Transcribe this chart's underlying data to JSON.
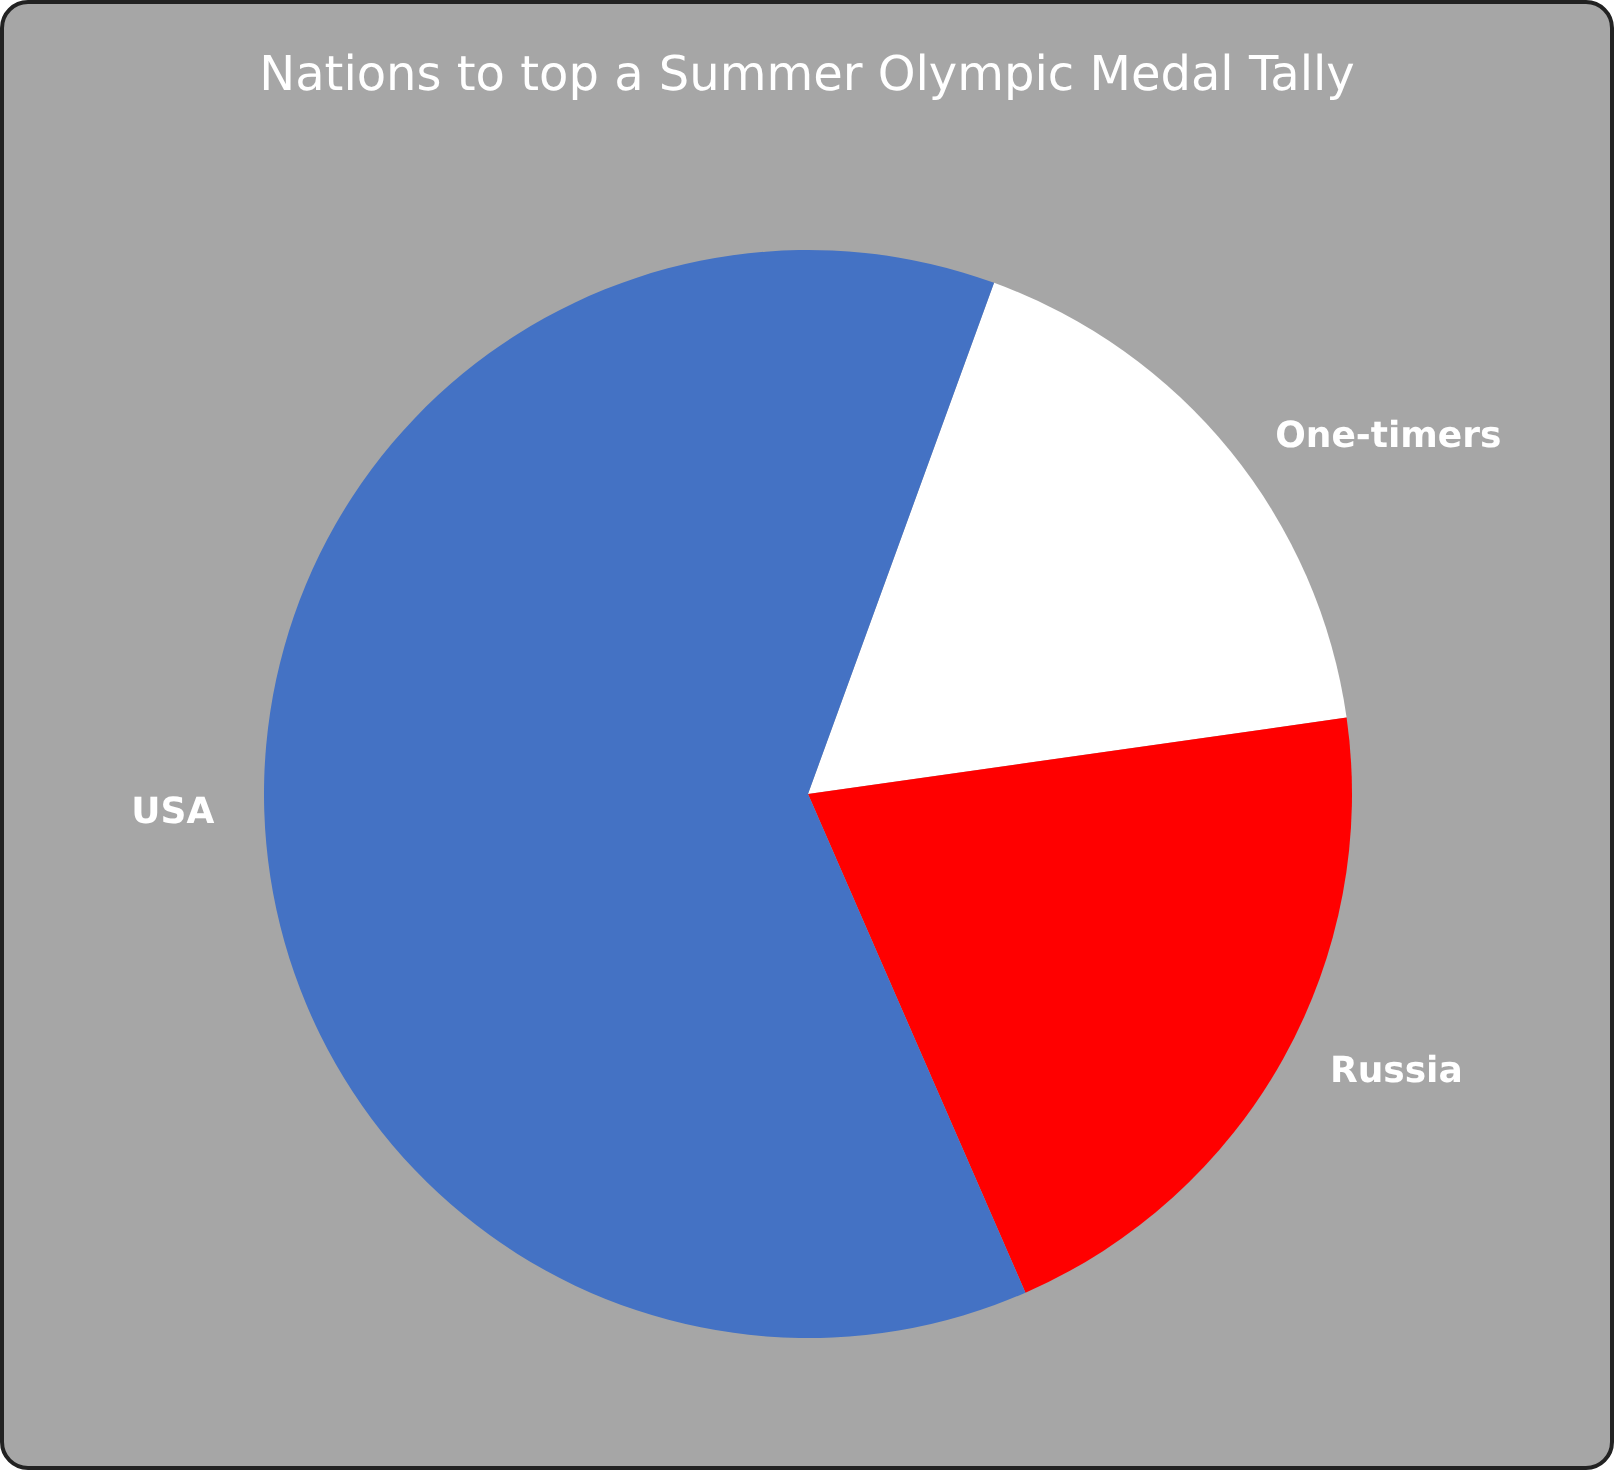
{
  "chart_data": {
    "type": "pie",
    "title": "Nations to top a Summer Olympic Medal Tally",
    "categories": [
      "One-timers",
      "Russia",
      "USA"
    ],
    "values": [
      17.2,
      20.7,
      62.1
    ],
    "colors": [
      "#ffffff",
      "#ff0000",
      "#4472c4"
    ]
  }
}
